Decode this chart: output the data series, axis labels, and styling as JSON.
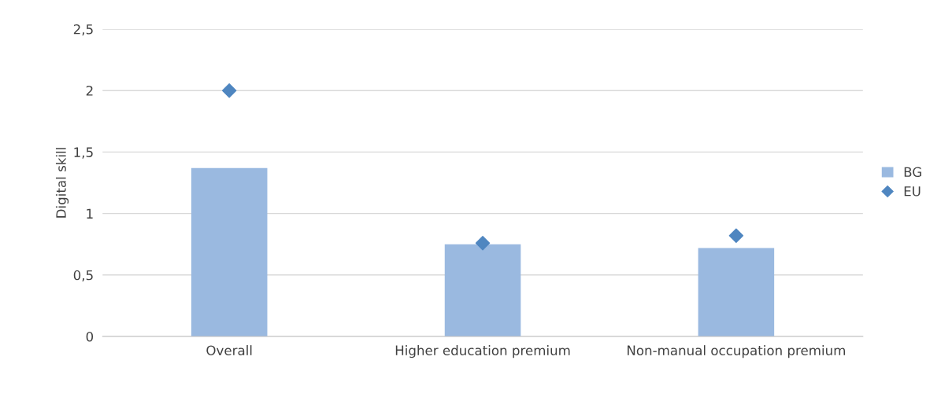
{
  "chart_data": {
    "type": "bar",
    "ylabel": "Digital skill",
    "categories": [
      "Overall",
      "Higher education premium",
      "Non-manual occupation premium"
    ],
    "series": [
      {
        "name": "BG",
        "color": "#9ab9e0",
        "values": [
          1.37,
          0.75,
          0.72
        ]
      },
      {
        "name": "EU",
        "type": "scatter",
        "color": "#4f86c0",
        "marker": "diamond",
        "values": [
          2.0,
          0.76,
          0.82
        ]
      }
    ],
    "ylim": [
      0,
      2.5
    ],
    "yticks": [
      0,
      {
        "value": 0.5,
        "label": "0,5"
      },
      1,
      {
        "value": 1.5,
        "label": "1,5"
      },
      2,
      {
        "value": 2.5,
        "label": "2,5"
      }
    ],
    "grid": "y",
    "legend": "right"
  }
}
